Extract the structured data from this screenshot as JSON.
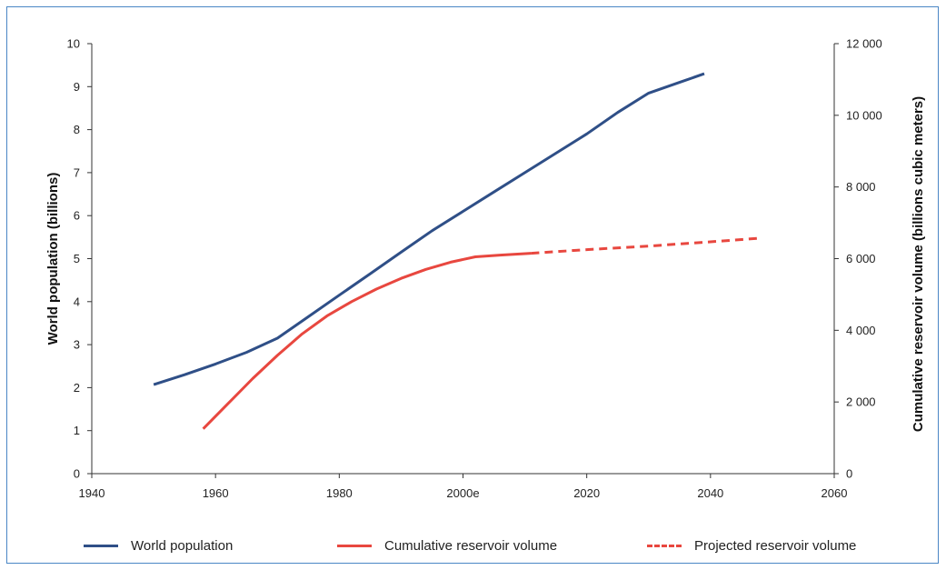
{
  "chart_data": {
    "type": "line",
    "xlabel": "",
    "ylabel": "World population (billions)",
    "y2label": "Cumulative reservoir volume (billions cubic meters)",
    "xlim": [
      1940,
      2060
    ],
    "ylim": [
      0,
      10
    ],
    "y2lim": [
      0,
      12000
    ],
    "x_ticks": [
      1940,
      1960,
      1980,
      2000,
      2020,
      2040,
      2060
    ],
    "x_tick_labels": [
      "1940",
      "1960",
      "1980",
      "2000e",
      "2020",
      "2040",
      "2060"
    ],
    "y_ticks": [
      0,
      1,
      2,
      3,
      4,
      5,
      6,
      7,
      8,
      9,
      10
    ],
    "y_tick_labels": [
      "0",
      "1",
      "2",
      "3",
      "4",
      "5",
      "6",
      "7",
      "8",
      "9",
      "10"
    ],
    "y2_ticks": [
      0,
      2000,
      4000,
      6000,
      8000,
      10000,
      12000
    ],
    "y2_tick_labels": [
      "0",
      "2 000",
      "4 000",
      "6 000",
      "8 000",
      "10 000",
      "12 000"
    ],
    "grid": false,
    "legend_position": "bottom",
    "series": [
      {
        "name": "World population",
        "axis": "left",
        "color": "#2f4f87",
        "style": "solid",
        "x": [
          1950,
          1955,
          1960,
          1965,
          1970,
          1975,
          1980,
          1985,
          1990,
          1995,
          2000,
          2005,
          2010,
          2015,
          2020,
          2025,
          2030,
          2035,
          2039
        ],
        "y": [
          2.07,
          2.3,
          2.55,
          2.82,
          3.15,
          3.65,
          4.15,
          4.65,
          5.15,
          5.65,
          6.1,
          6.55,
          7.0,
          7.45,
          7.9,
          8.4,
          8.85,
          9.1,
          9.3
        ]
      },
      {
        "name": "Cumulative reservoir volume",
        "axis": "right",
        "color": "#e8473f",
        "style": "solid",
        "x": [
          1958,
          1962,
          1966,
          1970,
          1974,
          1978,
          1982,
          1986,
          1990,
          1994,
          1998,
          2002,
          2006,
          2011
        ],
        "y": [
          1250,
          1950,
          2650,
          3300,
          3900,
          4400,
          4800,
          5150,
          5450,
          5700,
          5900,
          6050,
          6100,
          6150
        ]
      },
      {
        "name": "Projected reservoir volume",
        "axis": "right",
        "color": "#e8473f",
        "style": "dashed",
        "x": [
          2011,
          2020,
          2030,
          2040,
          2048
        ],
        "y": [
          6150,
          6250,
          6350,
          6470,
          6570
        ]
      }
    ]
  }
}
